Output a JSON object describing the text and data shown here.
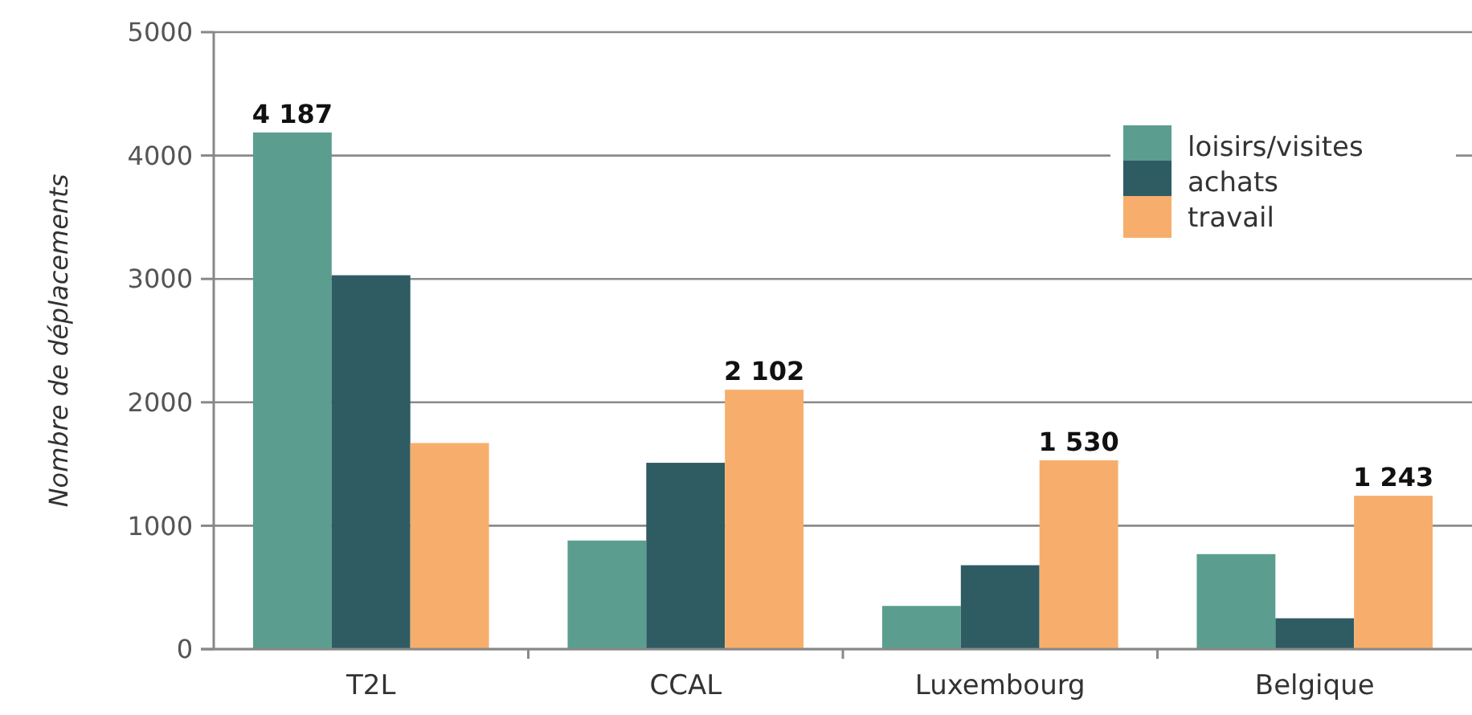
{
  "chart_data": {
    "type": "bar",
    "ylabel": "Nombre de déplacements",
    "categories": [
      "T2L",
      "CCAL",
      "Luxembourg",
      "Belgique"
    ],
    "series": [
      {
        "name": "loisirs/visites",
        "color": "#5b9e8f",
        "values": [
          4187,
          880,
          350,
          770
        ],
        "value_labels": [
          "4 187",
          null,
          null,
          null
        ]
      },
      {
        "name": "achats",
        "color": "#2f5b63",
        "values": [
          3030,
          1510,
          680,
          250
        ]
      },
      {
        "name": "travail",
        "color": "#f7ae6c",
        "values": [
          1670,
          2102,
          1530,
          1243
        ],
        "value_labels": [
          null,
          "2 102",
          "1 530",
          "1 243"
        ]
      }
    ],
    "ylim": [
      0,
      5000
    ],
    "yticks": [
      0,
      1000,
      2000,
      3000,
      4000,
      5000
    ],
    "grid": "y",
    "legend": "top right"
  }
}
